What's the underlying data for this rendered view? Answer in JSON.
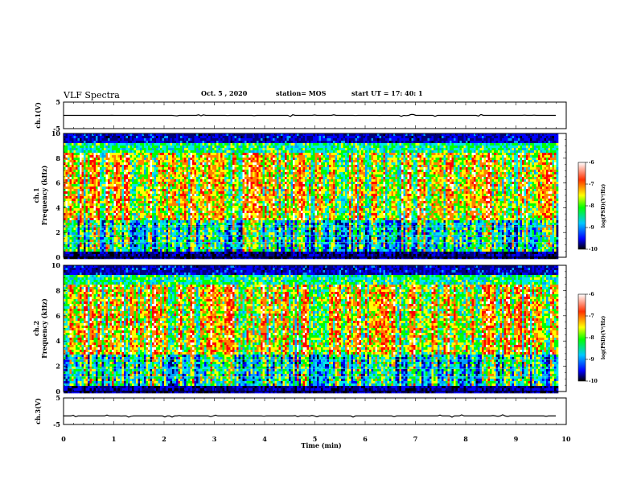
{
  "header": {
    "title": "VLF Spectra",
    "date": "Oct. 5  , 2020",
    "station": "station= MOS",
    "start": "start  UT  =   17: 40: 1"
  },
  "chart_data": [
    {
      "type": "line",
      "panel": "ch1-waveform",
      "ylabel": "ch.1(V)",
      "xlim": [
        0,
        10
      ],
      "ylim": [
        -5,
        5
      ],
      "yticks": [
        "5",
        "-5"
      ],
      "series": [
        {
          "x_range": [
            0,
            9.8
          ],
          "y_approx": 0.0,
          "description_values": "near-constant around 0 V with small spikes"
        }
      ]
    },
    {
      "type": "heatmap",
      "panel": "ch1-spectrogram",
      "ylabel": "ch.1\nFrequency  (kHz)",
      "xlim": [
        0,
        10
      ],
      "ylim": [
        0,
        10
      ],
      "yticks": [
        "0",
        "2",
        "4",
        "6",
        "8",
        "10"
      ],
      "colorbar": {
        "label": "log(PSD)(V²/Hz)",
        "range": [
          -10,
          -6
        ],
        "ticks": [
          "-6",
          "-7",
          "-8",
          "-9",
          "-10"
        ]
      }
    },
    {
      "type": "heatmap",
      "panel": "ch2-spectrogram",
      "ylabel": "ch.2\nFrequency  (kHz)",
      "xlim": [
        0,
        10
      ],
      "ylim": [
        0,
        10
      ],
      "yticks": [
        "0",
        "2",
        "4",
        "6",
        "8",
        "10"
      ],
      "colorbar": {
        "label": "log(PSD)(V²/Hz)",
        "range": [
          -10,
          -6
        ],
        "ticks": [
          "-6",
          "-7",
          "-8",
          "-9",
          "-10"
        ]
      }
    },
    {
      "type": "line",
      "panel": "ch3-waveform",
      "ylabel": "ch.3(V)",
      "xlim": [
        0,
        10
      ],
      "ylim": [
        -5,
        5
      ],
      "yticks": [
        "5",
        "-5"
      ],
      "xlabel": "Time  (min)",
      "xticks": [
        "0",
        "1",
        "2",
        "3",
        "4",
        "5",
        "6",
        "7",
        "8",
        "9",
        "10"
      ],
      "series": [
        {
          "x_range": [
            0,
            9.8
          ],
          "y_approx": -1.8
        }
      ]
    }
  ],
  "colors": {
    "cmap": [
      "#000000",
      "#00007a",
      "#0000ff",
      "#00a0ff",
      "#00e8e8",
      "#00ff00",
      "#ffff00",
      "#ff8000",
      "#ff0000",
      "#ffffff"
    ]
  }
}
